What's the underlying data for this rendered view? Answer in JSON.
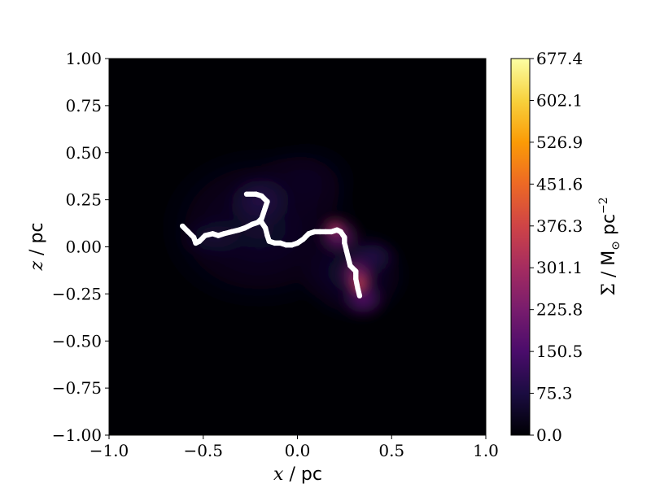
{
  "chart_data": {
    "type": "heatmap",
    "xlabel": {
      "var": "x",
      "sep": " / ",
      "unit": "pc"
    },
    "ylabel": {
      "var": "z",
      "sep": " / ",
      "unit": "pc"
    },
    "xlim": [
      -1.0,
      1.0
    ],
    "ylim": [
      -1.0,
      1.0
    ],
    "x_ticks": [
      "−1.0",
      "−0.5",
      "0.0",
      "0.5",
      "1.0"
    ],
    "y_ticks": [
      "1.00",
      "0.75",
      "0.50",
      "0.25",
      "0.00",
      "−0.25",
      "−0.50",
      "−0.75",
      "−1.00"
    ],
    "colorbar": {
      "label": "Σ / M☉ pc⁻²",
      "label_parts": {
        "sym": "Σ",
        "sep": " / ",
        "unit": "M",
        "sub": "⊙",
        "unit2": " pc",
        "exp": "−2"
      },
      "range": [
        0.0,
        677.4
      ],
      "ticks": [
        "677.4",
        "602.1",
        "526.9",
        "451.6",
        "376.3",
        "301.1",
        "225.8",
        "150.5",
        "75.3",
        "0.0"
      ],
      "colormap": "inferno",
      "colors": [
        "#000004",
        "#1b0c41",
        "#4a0c6b",
        "#781c6d",
        "#a52c60",
        "#cf4446",
        "#ed6925",
        "#fb9b06",
        "#f7d13d",
        "#fcffa4"
      ]
    },
    "density_clumps": [
      {
        "x": -0.2,
        "y": 0.1,
        "sx": 0.55,
        "sy": 0.45,
        "value": 55
      },
      {
        "x": 0.05,
        "y": 0.35,
        "sx": 0.28,
        "sy": 0.22,
        "value": 40
      },
      {
        "x": 0.3,
        "y": -0.15,
        "sx": 0.3,
        "sy": 0.25,
        "value": 70
      },
      {
        "x": -0.45,
        "y": 0.05,
        "sx": 0.18,
        "sy": 0.12,
        "value": 60
      },
      {
        "x": -0.2,
        "y": 0.25,
        "sx": 0.18,
        "sy": 0.15,
        "value": 90
      },
      {
        "x": 0.22,
        "y": 0.06,
        "sx": 0.12,
        "sy": 0.1,
        "value": 210
      },
      {
        "x": 0.32,
        "y": -0.15,
        "sx": 0.1,
        "sy": 0.12,
        "value": 260
      },
      {
        "x": 0.35,
        "y": -0.28,
        "sx": 0.12,
        "sy": 0.1,
        "value": 170
      },
      {
        "x": 0.2,
        "y": 0.1,
        "sx": 0.06,
        "sy": 0.05,
        "value": 320
      },
      {
        "x": 0.33,
        "y": -0.2,
        "sx": 0.05,
        "sy": 0.06,
        "value": 380
      },
      {
        "x": 0.4,
        "y": -0.05,
        "sx": 0.14,
        "sy": 0.1,
        "value": 90
      }
    ],
    "track": {
      "color": "#ffffff",
      "points": [
        [
          -0.61,
          0.11
        ],
        [
          -0.58,
          0.08
        ],
        [
          -0.55,
          0.05
        ],
        [
          -0.54,
          0.02
        ],
        [
          -0.52,
          0.03
        ],
        [
          -0.49,
          0.06
        ],
        [
          -0.45,
          0.07
        ],
        [
          -0.42,
          0.06
        ],
        [
          -0.39,
          0.07
        ],
        [
          -0.35,
          0.08
        ],
        [
          -0.31,
          0.09
        ],
        [
          -0.28,
          0.1
        ],
        [
          -0.24,
          0.12
        ],
        [
          -0.21,
          0.13
        ],
        [
          -0.19,
          0.15
        ],
        [
          -0.18,
          0.18
        ],
        [
          -0.17,
          0.21
        ],
        [
          -0.16,
          0.24
        ],
        [
          -0.19,
          0.27
        ],
        [
          -0.22,
          0.28
        ],
        [
          -0.27,
          0.28
        ],
        [
          -0.19,
          0.13
        ],
        [
          -0.17,
          0.1
        ],
        [
          -0.16,
          0.06
        ],
        [
          -0.15,
          0.03
        ],
        [
          -0.12,
          0.02
        ],
        [
          -0.09,
          0.02
        ],
        [
          -0.06,
          0.01
        ],
        [
          -0.03,
          0.01
        ],
        [
          0.0,
          0.02
        ],
        [
          0.03,
          0.04
        ],
        [
          0.06,
          0.07
        ],
        [
          0.09,
          0.08
        ],
        [
          0.12,
          0.08
        ],
        [
          0.15,
          0.08
        ],
        [
          0.18,
          0.08
        ],
        [
          0.21,
          0.09
        ],
        [
          0.23,
          0.08
        ],
        [
          0.25,
          0.05
        ],
        [
          0.25,
          0.02
        ],
        [
          0.26,
          -0.02
        ],
        [
          0.27,
          -0.06
        ],
        [
          0.28,
          -0.1
        ],
        [
          0.31,
          -0.13
        ],
        [
          0.31,
          -0.17
        ],
        [
          0.32,
          -0.22
        ],
        [
          0.33,
          -0.26
        ]
      ]
    }
  }
}
